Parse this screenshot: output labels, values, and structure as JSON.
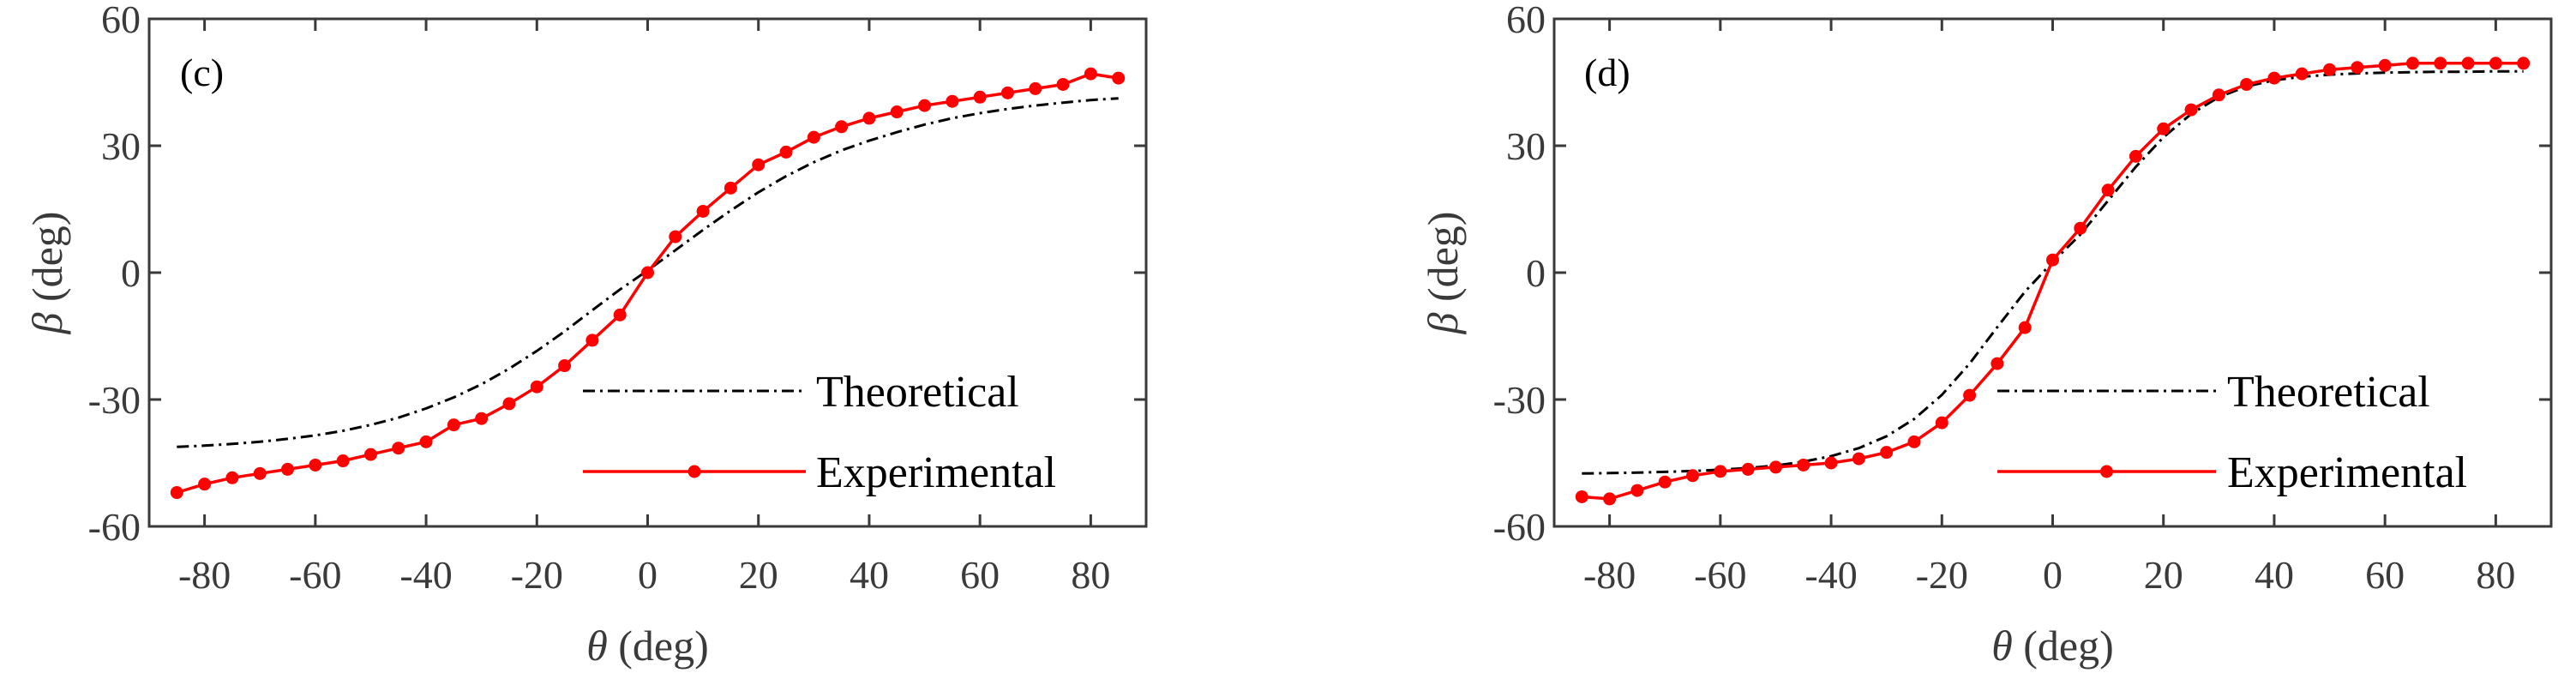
{
  "chart_data": [
    {
      "type": "line",
      "panel_label": "(c)",
      "xlabel": {
        "symbol": "θ",
        "unit": "(deg)"
      },
      "ylabel": {
        "symbol": "β",
        "unit": "(deg)"
      },
      "xlim": [
        -90,
        90
      ],
      "ylim": [
        -60,
        60
      ],
      "xticks": [
        -80,
        -60,
        -40,
        -20,
        0,
        20,
        40,
        60,
        80
      ],
      "yticks": [
        60,
        30,
        0,
        -30,
        -60
      ],
      "legend_position": "lower-right",
      "series": [
        {
          "name": "Theoretical",
          "style": "dash-dot",
          "color": "#000000",
          "x": [
            -85,
            -80,
            -75,
            -70,
            -65,
            -60,
            -55,
            -50,
            -45,
            -40,
            -35,
            -30,
            -25,
            -20,
            -15,
            -10,
            -5,
            0,
            5,
            10,
            15,
            20,
            25,
            30,
            35,
            40,
            45,
            50,
            55,
            60,
            65,
            70,
            75,
            80,
            85
          ],
          "y": [
            -41.2,
            -40.9,
            -40.5,
            -40.0,
            -39.3,
            -38.5,
            -37.4,
            -36.0,
            -34.3,
            -32.1,
            -29.5,
            -26.4,
            -22.7,
            -18.5,
            -13.9,
            -8.9,
            -4.0,
            0.5,
            5.3,
            10.1,
            14.7,
            19.0,
            22.8,
            26.1,
            28.9,
            31.2,
            33.2,
            35.0,
            36.5,
            37.7,
            38.7,
            39.5,
            40.2,
            40.8,
            41.2
          ]
        },
        {
          "name": "Experimental",
          "style": "solid-marker",
          "color": "#ff0000",
          "x": [
            -85,
            -80,
            -75,
            -70,
            -65,
            -60,
            -55,
            -50,
            -45,
            -40,
            -35,
            -30,
            -25,
            -20,
            -15,
            -10,
            -5,
            0,
            5,
            10,
            15,
            20,
            25,
            30,
            35,
            40,
            45,
            50,
            55,
            60,
            65,
            70,
            75,
            80,
            85
          ],
          "y": [
            -52,
            -50,
            -48.5,
            -47.5,
            -46.5,
            -45.5,
            -44.5,
            -43,
            -41.5,
            -40,
            -36,
            -34.5,
            -31,
            -27,
            -22,
            -16,
            -10,
            0,
            8.5,
            14.5,
            20,
            25.5,
            28.5,
            32,
            34.5,
            36.5,
            38,
            39.5,
            40.5,
            41.5,
            42.5,
            43.5,
            44.5,
            47,
            46
          ]
        }
      ]
    },
    {
      "type": "line",
      "panel_label": "(d)",
      "xlabel": {
        "symbol": "θ",
        "unit": "(deg)"
      },
      "ylabel": {
        "symbol": "β",
        "unit": "(deg)"
      },
      "xlim": [
        -90,
        90
      ],
      "ylim": [
        -60,
        60
      ],
      "xticks": [
        -80,
        -60,
        -40,
        -20,
        0,
        20,
        40,
        60,
        80
      ],
      "yticks": [
        60,
        30,
        0,
        -30,
        -60
      ],
      "legend_position": "lower-right",
      "series": [
        {
          "name": "Theoretical",
          "style": "dash-dot",
          "color": "#000000",
          "x": [
            -85,
            -80,
            -75,
            -70,
            -65,
            -60,
            -55,
            -50,
            -45,
            -40,
            -35,
            -30,
            -25,
            -20,
            -15,
            -10,
            -5,
            0,
            5,
            10,
            15,
            20,
            25,
            30,
            35,
            40,
            45,
            50,
            55,
            60,
            65,
            70,
            75,
            80,
            85
          ],
          "y": [
            -47.5,
            -47.4,
            -47.3,
            -47.1,
            -46.9,
            -46.6,
            -46.2,
            -45.6,
            -44.7,
            -43.4,
            -41.5,
            -38.7,
            -34.6,
            -28.9,
            -21.5,
            -12.9,
            -4.5,
            2.5,
            9.0,
            17.0,
            25.0,
            32.0,
            37.5,
            41.5,
            44.0,
            45.5,
            46.3,
            46.8,
            47.1,
            47.3,
            47.4,
            47.5,
            47.5,
            47.6,
            47.6
          ]
        },
        {
          "name": "Experimental",
          "style": "solid-marker",
          "color": "#ff0000",
          "x": [
            -85,
            -80,
            -75,
            -70,
            -65,
            -60,
            -55,
            -50,
            -45,
            -40,
            -35,
            -30,
            -25,
            -20,
            -15,
            -10,
            -5,
            0,
            5,
            10,
            15,
            20,
            25,
            30,
            35,
            40,
            45,
            50,
            55,
            60,
            65,
            70,
            75,
            80,
            85
          ],
          "y": [
            -53,
            -53.5,
            -51.5,
            -49.5,
            -48,
            -47,
            -46.5,
            -46,
            -45.5,
            -45,
            -44,
            -42.5,
            -40,
            -35.5,
            -29,
            -21.5,
            -13,
            3,
            10.5,
            19.5,
            27.5,
            34,
            38.5,
            42,
            44.5,
            46,
            47,
            48,
            48.5,
            49,
            49.5,
            49.5,
            49.5,
            49.5,
            49.5
          ]
        }
      ]
    }
  ]
}
